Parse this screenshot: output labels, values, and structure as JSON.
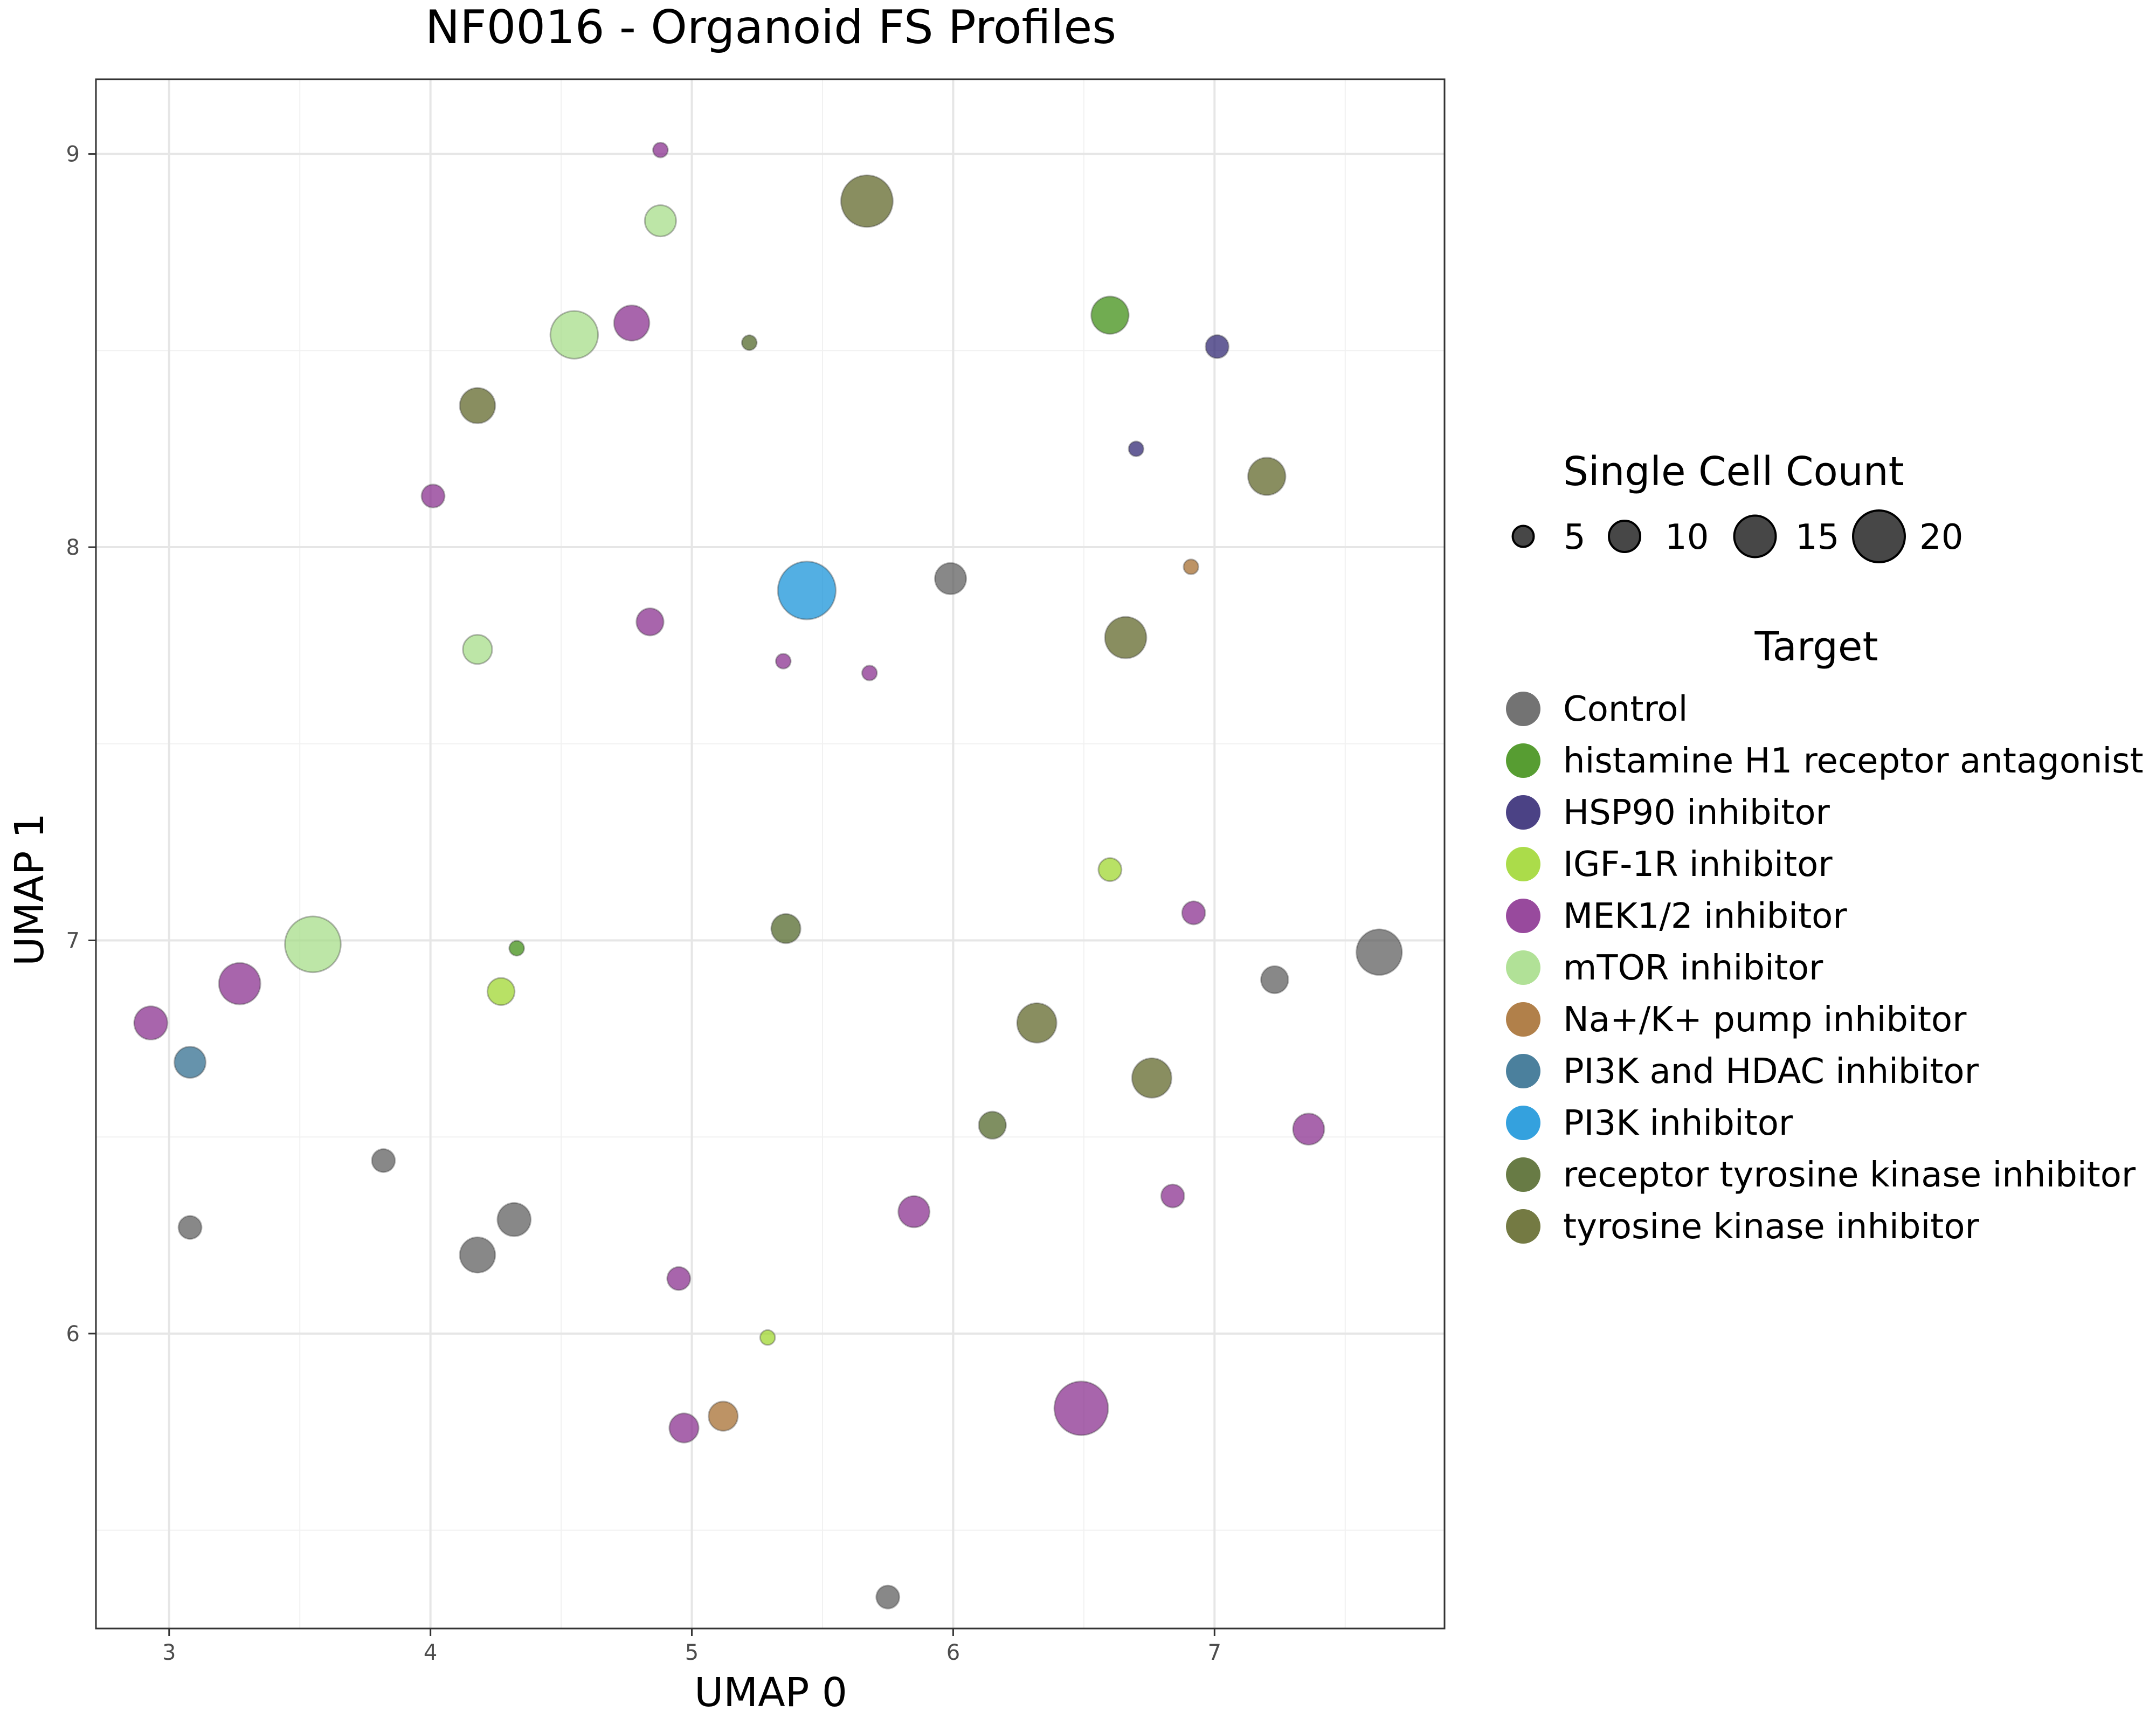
{
  "chart_data": {
    "type": "scatter",
    "title": "NF0016  - Organoid FS Profiles",
    "xlabel": "UMAP 0",
    "ylabel": "UMAP 1",
    "xlim": [
      2.72,
      7.88
    ],
    "ylim": [
      5.25,
      9.19
    ],
    "xticks": [
      3,
      4,
      5,
      6,
      7
    ],
    "yticks": [
      6,
      7,
      8,
      9
    ],
    "grid": true,
    "legend_position": "right",
    "size_legend": {
      "title": "Single Cell Count",
      "values": [
        5,
        10,
        15,
        20
      ]
    },
    "color_legend": {
      "title": "Target"
    },
    "series": [
      {
        "name": "Control",
        "color": "#5a5a5a",
        "points": [
          {
            "x": 3.08,
            "y": 6.27,
            "count": 6
          },
          {
            "x": 3.82,
            "y": 6.44,
            "count": 6
          },
          {
            "x": 4.18,
            "y": 6.2,
            "count": 12
          },
          {
            "x": 4.32,
            "y": 6.29,
            "count": 11
          },
          {
            "x": 5.99,
            "y": 7.92,
            "count": 10
          },
          {
            "x": 5.75,
            "y": 5.33,
            "count": 6
          },
          {
            "x": 7.23,
            "y": 6.9,
            "count": 8
          },
          {
            "x": 7.63,
            "y": 6.97,
            "count": 17
          }
        ]
      },
      {
        "name": "histamine H1 receptor antagonist",
        "color": "#3a8c0e",
        "points": [
          {
            "x": 4.33,
            "y": 6.98,
            "count": 2
          },
          {
            "x": 6.6,
            "y": 8.59,
            "count": 13
          }
        ]
      },
      {
        "name": "HSP90 inhibitor",
        "color": "#2b2170",
        "points": [
          {
            "x": 7.01,
            "y": 8.51,
            "count": 6
          },
          {
            "x": 6.7,
            "y": 8.25,
            "count": 2
          }
        ]
      },
      {
        "name": "IGF-1R inhibitor",
        "color": "#9cd62a",
        "points": [
          {
            "x": 4.27,
            "y": 6.87,
            "count": 8
          },
          {
            "x": 6.6,
            "y": 7.18,
            "count": 6
          },
          {
            "x": 5.29,
            "y": 5.99,
            "count": 2
          }
        ]
      },
      {
        "name": "MEK1/2 inhibitor",
        "color": "#862a8c",
        "points": [
          {
            "x": 4.88,
            "y": 9.01,
            "count": 2
          },
          {
            "x": 4.77,
            "y": 8.57,
            "count": 12
          },
          {
            "x": 4.01,
            "y": 8.13,
            "count": 6
          },
          {
            "x": 4.84,
            "y": 7.81,
            "count": 8
          },
          {
            "x": 5.35,
            "y": 7.71,
            "count": 2
          },
          {
            "x": 5.68,
            "y": 7.68,
            "count": 2
          },
          {
            "x": 2.93,
            "y": 6.79,
            "count": 11
          },
          {
            "x": 3.27,
            "y": 6.89,
            "count": 15
          },
          {
            "x": 6.92,
            "y": 7.07,
            "count": 6
          },
          {
            "x": 7.36,
            "y": 6.52,
            "count": 10
          },
          {
            "x": 6.84,
            "y": 6.35,
            "count": 6
          },
          {
            "x": 5.85,
            "y": 6.31,
            "count": 10
          },
          {
            "x": 4.95,
            "y": 6.14,
            "count": 6
          },
          {
            "x": 4.97,
            "y": 5.76,
            "count": 9
          },
          {
            "x": 6.49,
            "y": 5.81,
            "count": 21
          }
        ]
      },
      {
        "name": "mTOR inhibitor",
        "color": "#a3dc85",
        "points": [
          {
            "x": 4.88,
            "y": 8.83,
            "count": 10
          },
          {
            "x": 4.55,
            "y": 8.54,
            "count": 18
          },
          {
            "x": 4.18,
            "y": 7.74,
            "count": 9
          },
          {
            "x": 3.55,
            "y": 6.99,
            "count": 22
          }
        ]
      },
      {
        "name": "Na+/K+ pump inhibitor",
        "color": "#a36a2a",
        "points": [
          {
            "x": 6.91,
            "y": 7.95,
            "count": 2
          },
          {
            "x": 5.12,
            "y": 5.79,
            "count": 9
          }
        ]
      },
      {
        "name": "PI3K and HDAC inhibitor",
        "color": "#2b6a8c",
        "points": [
          {
            "x": 3.08,
            "y": 6.69,
            "count": 10
          }
        ]
      },
      {
        "name": "PI3K inhibitor",
        "color": "#1190d8",
        "points": [
          {
            "x": 5.44,
            "y": 7.89,
            "count": 23
          }
        ]
      },
      {
        "name": "receptor tyrosine kinase inhibitor",
        "color": "#4e6424",
        "points": [
          {
            "x": 5.22,
            "y": 8.52,
            "count": 2
          },
          {
            "x": 5.36,
            "y": 7.03,
            "count": 9
          },
          {
            "x": 6.15,
            "y": 6.53,
            "count": 8
          }
        ]
      },
      {
        "name": "tyrosine kinase inhibitor",
        "color": "#5c6322",
        "points": [
          {
            "x": 5.67,
            "y": 8.88,
            "count": 20
          },
          {
            "x": 4.18,
            "y": 8.36,
            "count": 12
          },
          {
            "x": 7.2,
            "y": 8.18,
            "count": 13
          },
          {
            "x": 6.66,
            "y": 7.77,
            "count": 15
          },
          {
            "x": 6.32,
            "y": 6.79,
            "count": 14
          },
          {
            "x": 6.76,
            "y": 6.65,
            "count": 14
          }
        ]
      }
    ]
  }
}
